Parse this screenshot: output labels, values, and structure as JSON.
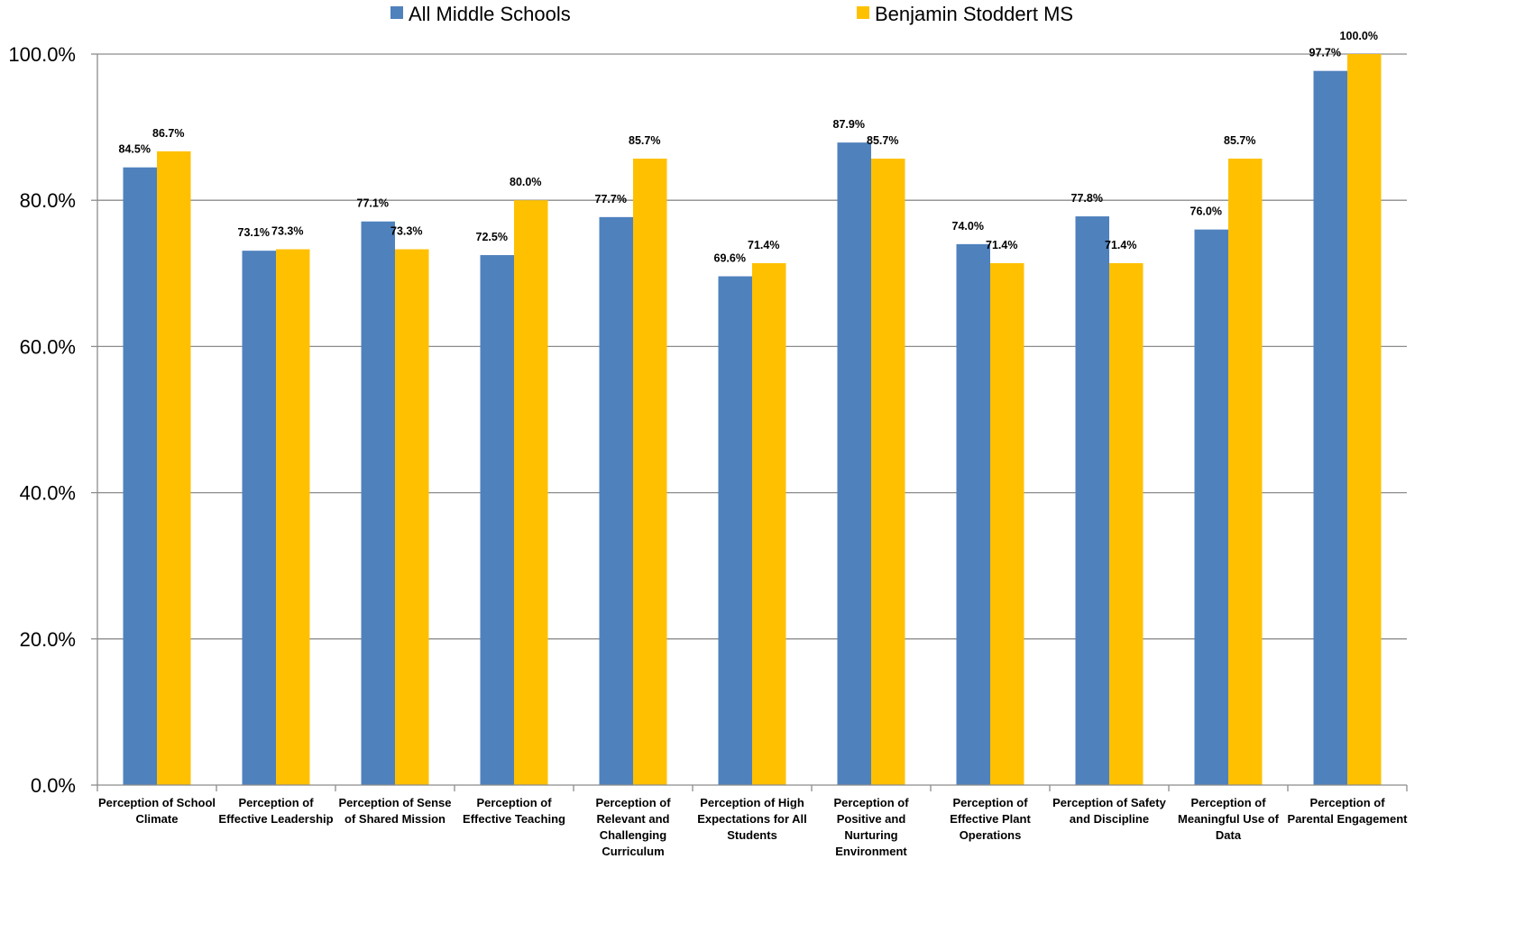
{
  "chart_data": {
    "type": "bar",
    "title": "",
    "xlabel": "",
    "ylabel": "",
    "ylim": [
      0,
      100
    ],
    "yticks": [
      "0.0%",
      "20.0%",
      "40.0%",
      "60.0%",
      "80.0%",
      "100.0%"
    ],
    "grid": true,
    "legend_position": "top",
    "categories": [
      [
        "Perception of School",
        "Climate"
      ],
      [
        "Perception of",
        "Effective Leadership"
      ],
      [
        "Perception of Sense",
        "of Shared Mission"
      ],
      [
        "Perception of",
        "Effective Teaching"
      ],
      [
        "Perception of",
        "Relevant and",
        "Challenging",
        "Curriculum"
      ],
      [
        "Perception of High",
        "Expectations for All",
        "Students"
      ],
      [
        "Perception of",
        "Positive and",
        "Nurturing",
        "Environment"
      ],
      [
        "Perception of",
        "Effective Plant",
        "Operations"
      ],
      [
        "Perception of Safety",
        "and Discipline"
      ],
      [
        "Perception of",
        "Meaningful Use of",
        "Data"
      ],
      [
        "Perception of",
        "Parental Engagement"
      ]
    ],
    "series": [
      {
        "name": "All Middle Schools",
        "color": "#4F81BD",
        "values": [
          84.5,
          73.1,
          77.1,
          72.5,
          77.7,
          69.6,
          87.9,
          74.0,
          77.8,
          76.0,
          97.7
        ],
        "labels": [
          "84.5%",
          "73.1%",
          "77.1%",
          "72.5%",
          "77.7%",
          "69.6%",
          "87.9%",
          "74.0%",
          "77.8%",
          "76.0%",
          "97.7%"
        ]
      },
      {
        "name": "Benjamin Stoddert MS",
        "color": "#FFC000",
        "values": [
          86.7,
          73.3,
          73.3,
          80.0,
          85.7,
          71.4,
          85.7,
          71.4,
          71.4,
          85.7,
          100.0
        ],
        "labels": [
          "86.7%",
          "73.3%",
          "73.3%",
          "80.0%",
          "85.7%",
          "71.4%",
          "85.7%",
          "71.4%",
          "71.4%",
          "85.7%",
          "100.0%"
        ]
      }
    ]
  }
}
